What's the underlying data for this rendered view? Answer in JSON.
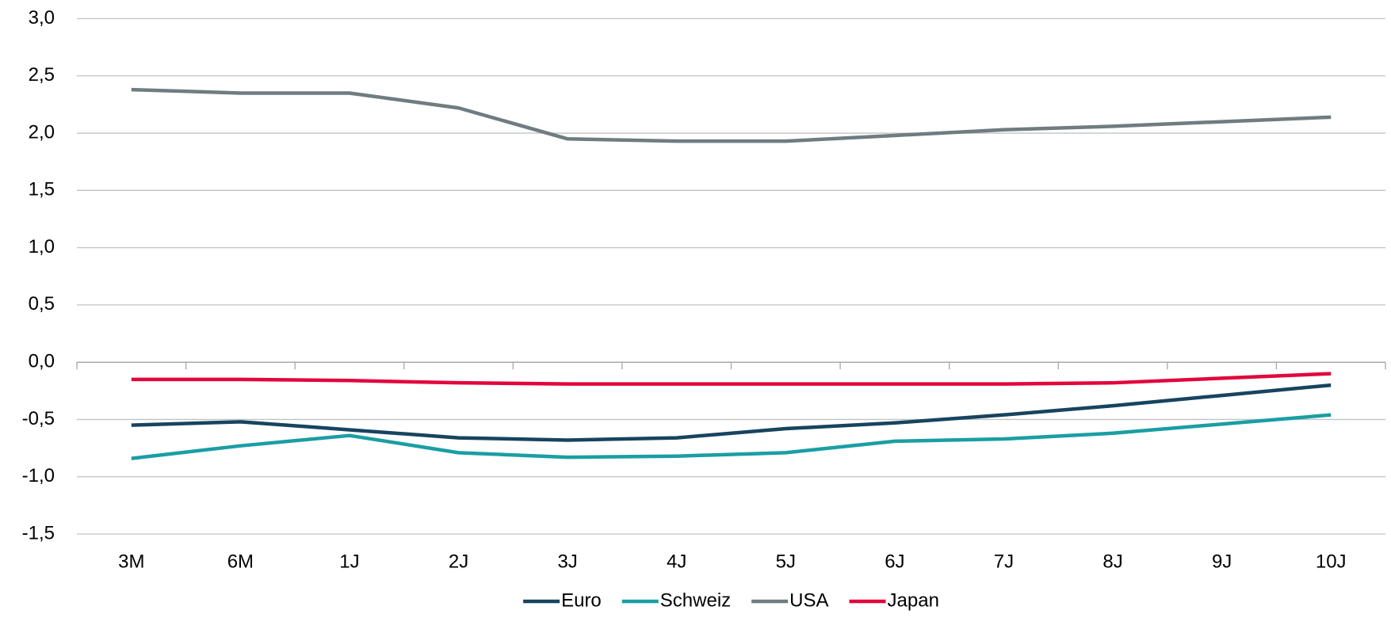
{
  "chart_data": {
    "type": "line",
    "categories": [
      "3M",
      "6M",
      "1J",
      "2J",
      "3J",
      "4J",
      "5J",
      "6J",
      "7J",
      "8J",
      "9J",
      "10J"
    ],
    "series": [
      {
        "name": "Euro",
        "color": "#17445f",
        "values": [
          -0.55,
          -0.52,
          -0.59,
          -0.66,
          -0.68,
          -0.66,
          -0.58,
          -0.53,
          -0.46,
          -0.38,
          -0.29,
          -0.2
        ]
      },
      {
        "name": "Schweiz",
        "color": "#1a9ea3",
        "values": [
          -0.84,
          -0.73,
          -0.64,
          -0.79,
          -0.83,
          -0.82,
          -0.79,
          -0.69,
          -0.67,
          -0.62,
          -0.54,
          -0.46
        ]
      },
      {
        "name": "USA",
        "color": "#6f7c80",
        "values": [
          2.38,
          2.35,
          2.35,
          2.22,
          1.95,
          1.93,
          1.93,
          1.98,
          2.03,
          2.06,
          2.1,
          2.14
        ]
      },
      {
        "name": "Japan",
        "color": "#e2063c",
        "values": [
          -0.15,
          -0.15,
          -0.16,
          -0.18,
          -0.19,
          -0.19,
          -0.19,
          -0.19,
          -0.19,
          -0.18,
          -0.14,
          -0.1
        ]
      }
    ],
    "ylim": [
      -1.5,
      3.0
    ],
    "yticks": [
      {
        "value": -1.5,
        "label": "-1,5"
      },
      {
        "value": -1.0,
        "label": "-1,0"
      },
      {
        "value": -0.5,
        "label": "-0,5"
      },
      {
        "value": 0.0,
        "label": "0,0"
      },
      {
        "value": 0.5,
        "label": "0,5"
      },
      {
        "value": 1.0,
        "label": "1,0"
      },
      {
        "value": 1.5,
        "label": "1,5"
      },
      {
        "value": 2.0,
        "label": "2,0"
      },
      {
        "value": 2.5,
        "label": "2,5"
      },
      {
        "value": 3.0,
        "label": "3,0"
      }
    ],
    "grid": true,
    "legend": "bottom"
  }
}
